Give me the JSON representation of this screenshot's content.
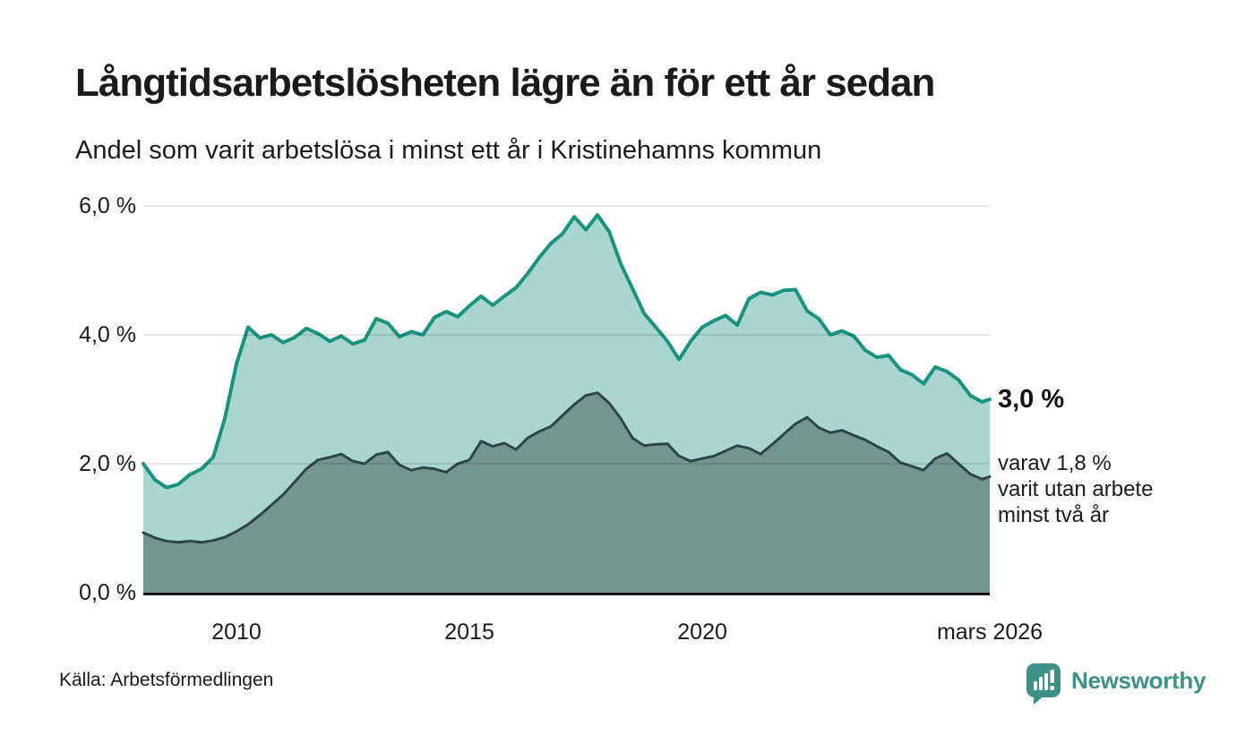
{
  "header": {
    "title": "Långtidsarbetslösheten lägre än för ett år sedan",
    "subtitle": "Andel som varit arbetslösa i minst ett år i Kristinehamns kommun"
  },
  "annotations": {
    "end_value": "3,0 %",
    "sub_lines": [
      "varav 1,8 %",
      "varit utan arbete",
      "minst två år"
    ]
  },
  "footer": {
    "source": "Källa: Arbetsförmedlingen",
    "brand": "Newsworthy"
  },
  "colors": {
    "line_one_year": "#18947e",
    "fill_one_year": "#a9d6cf",
    "line_two_years": "#2e4649",
    "fill_two_years": "#74968f",
    "gridline": "rgba(0,0,0,0.10)",
    "axis": "#111111",
    "text": "#1a1a1a",
    "brand_teal": "#3d9187"
  },
  "chart_data": {
    "type": "area",
    "title": "Långtidsarbetslösheten lägre än för ett år sedan",
    "subtitle": "Andel som varit arbetslösa i minst ett år i Kristinehamns kommun",
    "xlabel": "",
    "ylabel": "",
    "x_range": [
      2008.0,
      2026.17
    ],
    "ylim": [
      0,
      6.0
    ],
    "grid": "horizontal",
    "legend": "none",
    "y_ticks": [
      {
        "label": "0,0 %",
        "value": 0.0
      },
      {
        "label": "2,0 %",
        "value": 2.0
      },
      {
        "label": "4,0 %",
        "value": 4.0
      },
      {
        "label": "6,0 %",
        "value": 6.0
      }
    ],
    "x_ticks": [
      {
        "label": "2010",
        "value": 2010
      },
      {
        "label": "2015",
        "value": 2015
      },
      {
        "label": "2020",
        "value": 2020
      },
      {
        "label": "mars 2026",
        "value": 2026.17
      }
    ],
    "x": [
      2008.0,
      2008.25,
      2008.5,
      2008.75,
      2009.0,
      2009.25,
      2009.5,
      2009.75,
      2010.0,
      2010.25,
      2010.5,
      2010.75,
      2011.0,
      2011.25,
      2011.5,
      2011.75,
      2012.0,
      2012.25,
      2012.5,
      2012.75,
      2013.0,
      2013.25,
      2013.5,
      2013.75,
      2014.0,
      2014.25,
      2014.5,
      2014.75,
      2015.0,
      2015.25,
      2015.5,
      2015.75,
      2016.0,
      2016.25,
      2016.5,
      2016.75,
      2017.0,
      2017.25,
      2017.5,
      2017.75,
      2018.0,
      2018.25,
      2018.5,
      2018.75,
      2019.0,
      2019.25,
      2019.5,
      2019.75,
      2020.0,
      2020.25,
      2020.5,
      2020.75,
      2021.0,
      2021.25,
      2021.5,
      2021.75,
      2022.0,
      2022.25,
      2022.5,
      2022.75,
      2023.0,
      2023.25,
      2023.5,
      2023.75,
      2024.0,
      2024.25,
      2024.5,
      2024.75,
      2025.0,
      2025.25,
      2025.5,
      2025.75,
      2026.0,
      2026.17
    ],
    "series": [
      {
        "name": "Andel arbetslösa minst ett år",
        "end_label": "3,0 %",
        "values": [
          2.0,
          1.75,
          1.63,
          1.68,
          1.83,
          1.92,
          2.1,
          2.7,
          3.55,
          4.12,
          3.95,
          4.0,
          3.88,
          3.96,
          4.1,
          4.02,
          3.9,
          3.98,
          3.86,
          3.92,
          4.25,
          4.18,
          3.97,
          4.05,
          4.0,
          4.27,
          4.36,
          4.28,
          4.45,
          4.6,
          4.46,
          4.6,
          4.73,
          4.95,
          5.2,
          5.42,
          5.57,
          5.83,
          5.63,
          5.86,
          5.6,
          5.1,
          4.72,
          4.33,
          4.12,
          3.9,
          3.62,
          3.9,
          4.12,
          4.22,
          4.3,
          4.15,
          4.56,
          4.66,
          4.62,
          4.69,
          4.7,
          4.37,
          4.25,
          4.0,
          4.06,
          3.98,
          3.76,
          3.65,
          3.68,
          3.46,
          3.38,
          3.24,
          3.5,
          3.43,
          3.3,
          3.06,
          2.96,
          3.0
        ]
      },
      {
        "name": "Andel arbetslösa minst två år (varav)",
        "end_label": "1,8 %",
        "values": [
          0.93,
          0.85,
          0.8,
          0.78,
          0.8,
          0.78,
          0.81,
          0.86,
          0.95,
          1.06,
          1.2,
          1.36,
          1.52,
          1.72,
          1.92,
          2.06,
          2.1,
          2.15,
          2.04,
          2.0,
          2.14,
          2.18,
          1.98,
          1.9,
          1.94,
          1.92,
          1.87,
          2.0,
          2.06,
          2.35,
          2.27,
          2.32,
          2.22,
          2.4,
          2.5,
          2.58,
          2.75,
          2.92,
          3.06,
          3.1,
          2.94,
          2.7,
          2.4,
          2.28,
          2.3,
          2.31,
          2.12,
          2.04,
          2.08,
          2.12,
          2.2,
          2.28,
          2.24,
          2.15,
          2.3,
          2.46,
          2.62,
          2.72,
          2.56,
          2.48,
          2.52,
          2.44,
          2.37,
          2.27,
          2.18,
          2.02,
          1.96,
          1.9,
          2.08,
          2.16,
          2.0,
          1.84,
          1.76,
          1.8
        ]
      }
    ]
  }
}
